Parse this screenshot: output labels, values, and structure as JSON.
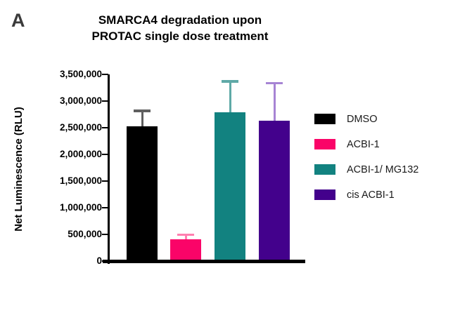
{
  "panel_label": "A",
  "chart_data": {
    "type": "bar",
    "title_lines": [
      "SMARCA4 degradation upon",
      "PROTAC single dose treatment"
    ],
    "ylabel": "Net Luminescence (RLU)",
    "xlabel": "",
    "ylim": [
      0,
      3500000
    ],
    "ytick_values": [
      0,
      500000,
      1000000,
      1500000,
      2000000,
      2500000,
      3000000,
      3500000
    ],
    "ytick_labels": [
      "0",
      "500,000",
      "1,000,000",
      "1,500,000",
      "2,000,000",
      "2,500,000",
      "3,000,000",
      "3,500,000"
    ],
    "categories": [
      "DMSO",
      "ACBI-1",
      "ACBI-1/ MG132",
      "cis ACBI-1"
    ],
    "values": [
      2530000,
      410000,
      2790000,
      2630000
    ],
    "errors_plus": [
      290000,
      90000,
      580000,
      710000
    ],
    "bar_colors": [
      "#000000",
      "#FA0468",
      "#128280",
      "#43018C"
    ],
    "error_bar_colors": [
      "#5F5F5F",
      "#FF7FB0",
      "#5FA9A7",
      "#A784D4"
    ],
    "grid": false,
    "legend_position": "right",
    "x_tick_labels_shown": false
  }
}
